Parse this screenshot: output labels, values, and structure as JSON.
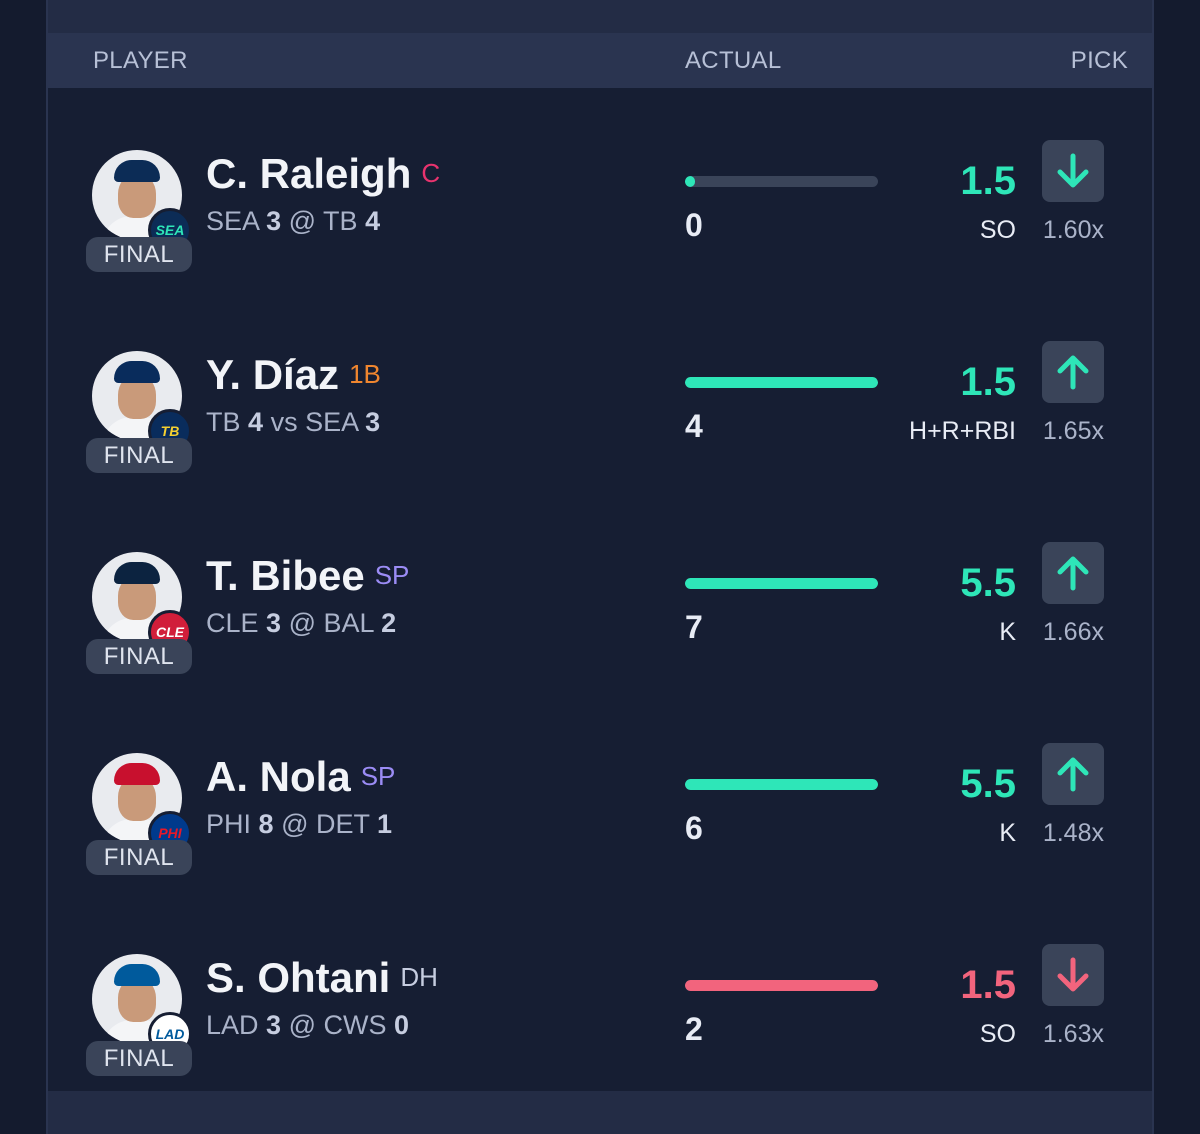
{
  "header": {
    "player": "PLAYER",
    "actual": "ACTUAL",
    "pick": "PICK"
  },
  "colors": {
    "green": "#2ee6b8",
    "red": "#f2647d"
  },
  "rows": [
    {
      "name": "C. Raleigh",
      "position": "C",
      "position_color": "#e8336e",
      "team_badge": "SEA",
      "team_color": "#0c2c56",
      "badge_text_color": "#2ee6b8",
      "cap_color": "#0c2c56",
      "game": {
        "team1": "SEA",
        "score1": "3",
        "sep": "@",
        "team2": "TB",
        "score2": "4"
      },
      "status": "FINAL",
      "actual": "0",
      "progress": 0.05,
      "bar_color": "#2ee6b8",
      "line": "1.5",
      "line_color": "#2ee6b8",
      "stat": "SO",
      "multiplier": "1.60x",
      "direction": "down",
      "arrow_color": "#2ee6b8"
    },
    {
      "name": "Y. Díaz",
      "position": "1B",
      "position_color": "#f0862f",
      "team_badge": "TB",
      "team_color": "#092c5c",
      "badge_text_color": "#f5d130",
      "cap_color": "#092c5c",
      "game": {
        "team1": "TB",
        "score1": "4",
        "sep": "vs",
        "team2": "SEA",
        "score2": "3"
      },
      "status": "FINAL",
      "actual": "4",
      "progress": 1.0,
      "bar_color": "#2ee6b8",
      "line": "1.5",
      "line_color": "#2ee6b8",
      "stat": "H+R+RBI",
      "multiplier": "1.65x",
      "direction": "up",
      "arrow_color": "#2ee6b8"
    },
    {
      "name": "T. Bibee",
      "position": "SP",
      "position_color": "#9b8cf5",
      "team_badge": "CLE",
      "team_color": "#d11e3a",
      "badge_text_color": "#ffffff",
      "cap_color": "#0c2340",
      "game": {
        "team1": "CLE",
        "score1": "3",
        "sep": "@",
        "team2": "BAL",
        "score2": "2"
      },
      "status": "FINAL",
      "actual": "7",
      "progress": 1.0,
      "bar_color": "#2ee6b8",
      "line": "5.5",
      "line_color": "#2ee6b8",
      "stat": "K",
      "multiplier": "1.66x",
      "direction": "up",
      "arrow_color": "#2ee6b8"
    },
    {
      "name": "A. Nola",
      "position": "SP",
      "position_color": "#9b8cf5",
      "team_badge": "PHI",
      "team_color": "#003a8c",
      "badge_text_color": "#e81828",
      "cap_color": "#c8102e",
      "game": {
        "team1": "PHI",
        "score1": "8",
        "sep": "@",
        "team2": "DET",
        "score2": "1"
      },
      "status": "FINAL",
      "actual": "6",
      "progress": 1.0,
      "bar_color": "#2ee6b8",
      "line": "5.5",
      "line_color": "#2ee6b8",
      "stat": "K",
      "multiplier": "1.48x",
      "direction": "up",
      "arrow_color": "#2ee6b8"
    },
    {
      "name": "S. Ohtani",
      "position": "DH",
      "position_color": "#c6cde0",
      "team_badge": "LAD",
      "team_color": "#ffffff",
      "badge_text_color": "#005a9c",
      "cap_color": "#005a9c",
      "game": {
        "team1": "LAD",
        "score1": "3",
        "sep": "@",
        "team2": "CWS",
        "score2": "0"
      },
      "status": "FINAL",
      "actual": "2",
      "progress": 1.0,
      "bar_color": "#f2647d",
      "line": "1.5",
      "line_color": "#f2647d",
      "stat": "SO",
      "multiplier": "1.63x",
      "direction": "down",
      "arrow_color": "#f2647d"
    }
  ]
}
